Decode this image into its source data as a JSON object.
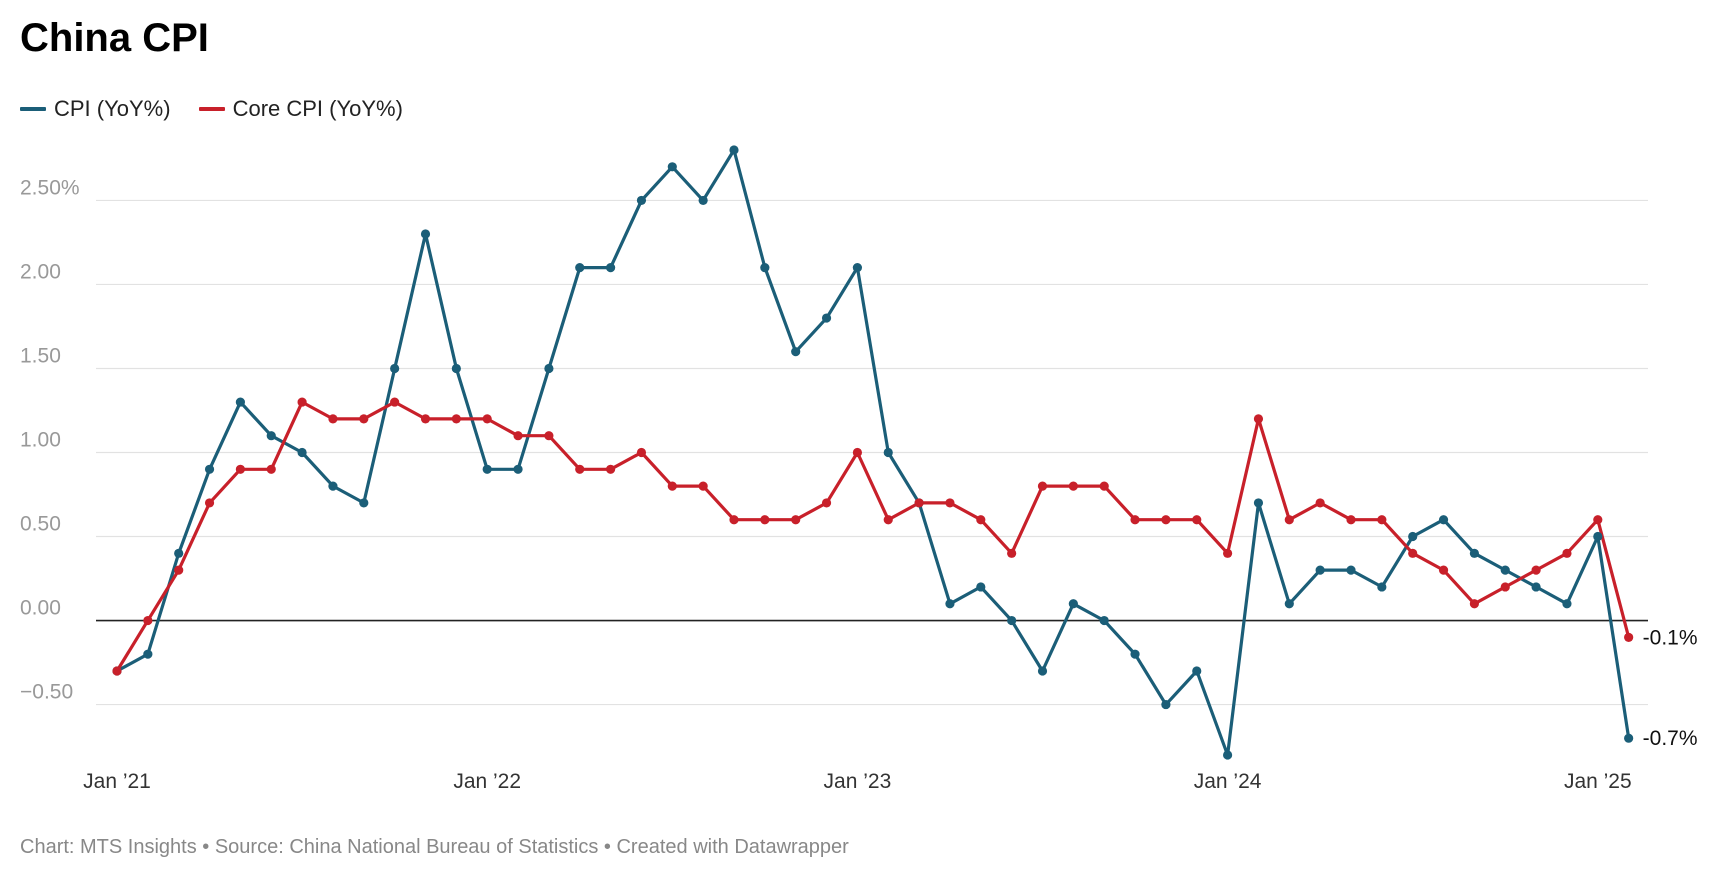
{
  "title": "China CPI",
  "footer": "Chart: MTS Insights • Source: China National Bureau of Statistics • Created with Datawrapper",
  "colors": {
    "cpi": "#1b5e78",
    "core": "#c8202a",
    "grid": "#e2e2e2",
    "zero": "#222222"
  },
  "chart_data": {
    "type": "line",
    "ylim": [
      -0.8,
      2.8
    ],
    "y_ticks": [
      -0.5,
      0,
      0.5,
      1,
      1.5,
      2,
      2.5
    ],
    "y_tick_labels": [
      "−0.50",
      "0.00",
      "0.50",
      "1.00",
      "1.50",
      "2.00",
      "2.50%"
    ],
    "x_ticks": [
      {
        "label": "Jan ’21",
        "index": 0
      },
      {
        "label": "Jan ’22",
        "index": 12
      },
      {
        "label": "Jan ’23",
        "index": 24
      },
      {
        "label": "Jan ’24",
        "index": 36
      },
      {
        "label": "Jan ’25",
        "index": 48
      }
    ],
    "x_start": "2021-01",
    "x_end": "2025-02",
    "grid": true,
    "legend": "top-left",
    "series": [
      {
        "name": "CPI (YoY%)",
        "color": "#1b5e78",
        "end_label": "-0.7%",
        "values": [
          -0.3,
          -0.2,
          0.4,
          0.9,
          1.3,
          1.1,
          1.0,
          0.8,
          0.7,
          1.5,
          2.3,
          1.5,
          0.9,
          0.9,
          1.5,
          2.1,
          2.1,
          2.5,
          2.7,
          2.5,
          2.8,
          2.1,
          1.6,
          1.8,
          2.1,
          1.0,
          0.7,
          0.1,
          0.2,
          0.0,
          -0.3,
          0.1,
          0.0,
          -0.2,
          -0.5,
          -0.3,
          -0.8,
          0.7,
          0.1,
          0.3,
          0.3,
          0.2,
          0.5,
          0.6,
          0.4,
          0.3,
          0.2,
          0.1,
          0.5,
          -0.7
        ]
      },
      {
        "name": "Core CPI (YoY%)",
        "color": "#c8202a",
        "end_label": "-0.1%",
        "values": [
          -0.3,
          0.0,
          0.3,
          0.7,
          0.9,
          0.9,
          1.3,
          1.2,
          1.2,
          1.3,
          1.2,
          1.2,
          1.2,
          1.1,
          1.1,
          0.9,
          0.9,
          1.0,
          0.8,
          0.8,
          0.6,
          0.6,
          0.6,
          0.7,
          1.0,
          0.6,
          0.7,
          0.7,
          0.6,
          0.4,
          0.8,
          0.8,
          0.8,
          0.6,
          0.6,
          0.6,
          0.4,
          1.2,
          0.6,
          0.7,
          0.6,
          0.6,
          0.4,
          0.3,
          0.1,
          0.2,
          0.3,
          0.4,
          0.6,
          -0.1
        ]
      }
    ]
  }
}
